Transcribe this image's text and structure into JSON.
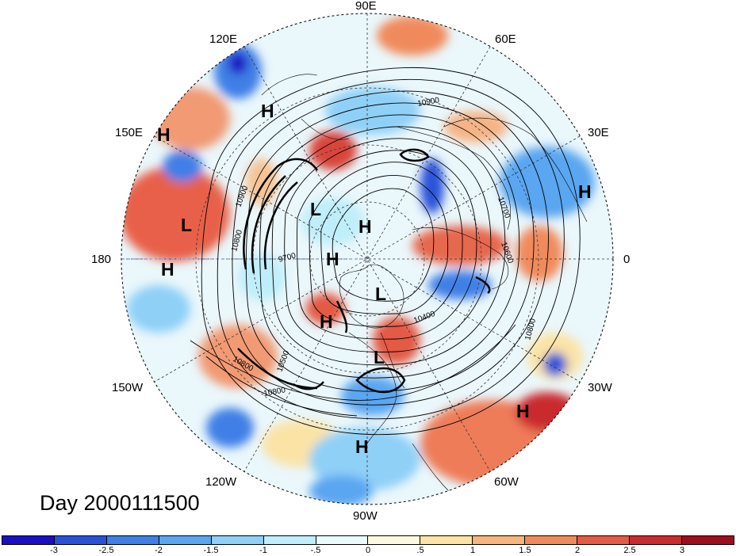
{
  "title": "Day 2000111500",
  "longitude_labels": {
    "e90": "90E",
    "e60": "60E",
    "e120": "120E",
    "e30": "30E",
    "e150": "150E",
    "zero": "0",
    "dateline": "180",
    "w30": "30W",
    "w150": "150W",
    "w60": "60W",
    "w120": "120W",
    "w90": "90W"
  },
  "pressure_centers": {
    "h1": "H",
    "h2": "H",
    "h3": "H",
    "h4": "H",
    "h5": "H",
    "h6": "H",
    "h7": "H",
    "h8": "H",
    "h9": "H",
    "l1": "L",
    "l2": "L",
    "l3": "L",
    "l4": "L"
  },
  "contour_labels": {
    "c1": "10900",
    "c2": "10900",
    "c3": "10800",
    "c4": "9700",
    "c5": "10700",
    "c6": "10600",
    "c7": "10400",
    "c8": "10500",
    "c9": "10800",
    "c10": "10800",
    "c11": "10800"
  },
  "colorbar": {
    "colors": [
      "#1a0fc4",
      "#2a52d8",
      "#3f7fe6",
      "#5aa6f0",
      "#8fd0f7",
      "#bfeefa",
      "#e9fbfd",
      "#fdf9de",
      "#fbe3a6",
      "#f6b57c",
      "#f08a5c",
      "#e35a45",
      "#c92b2e",
      "#9e0f1e"
    ],
    "tick_labels": [
      "-3",
      "-2.5",
      "-2",
      "-1.5",
      "-1",
      "-.5",
      "0",
      ".5",
      "1",
      "1.5",
      "2",
      "2.5",
      "3"
    ]
  }
}
